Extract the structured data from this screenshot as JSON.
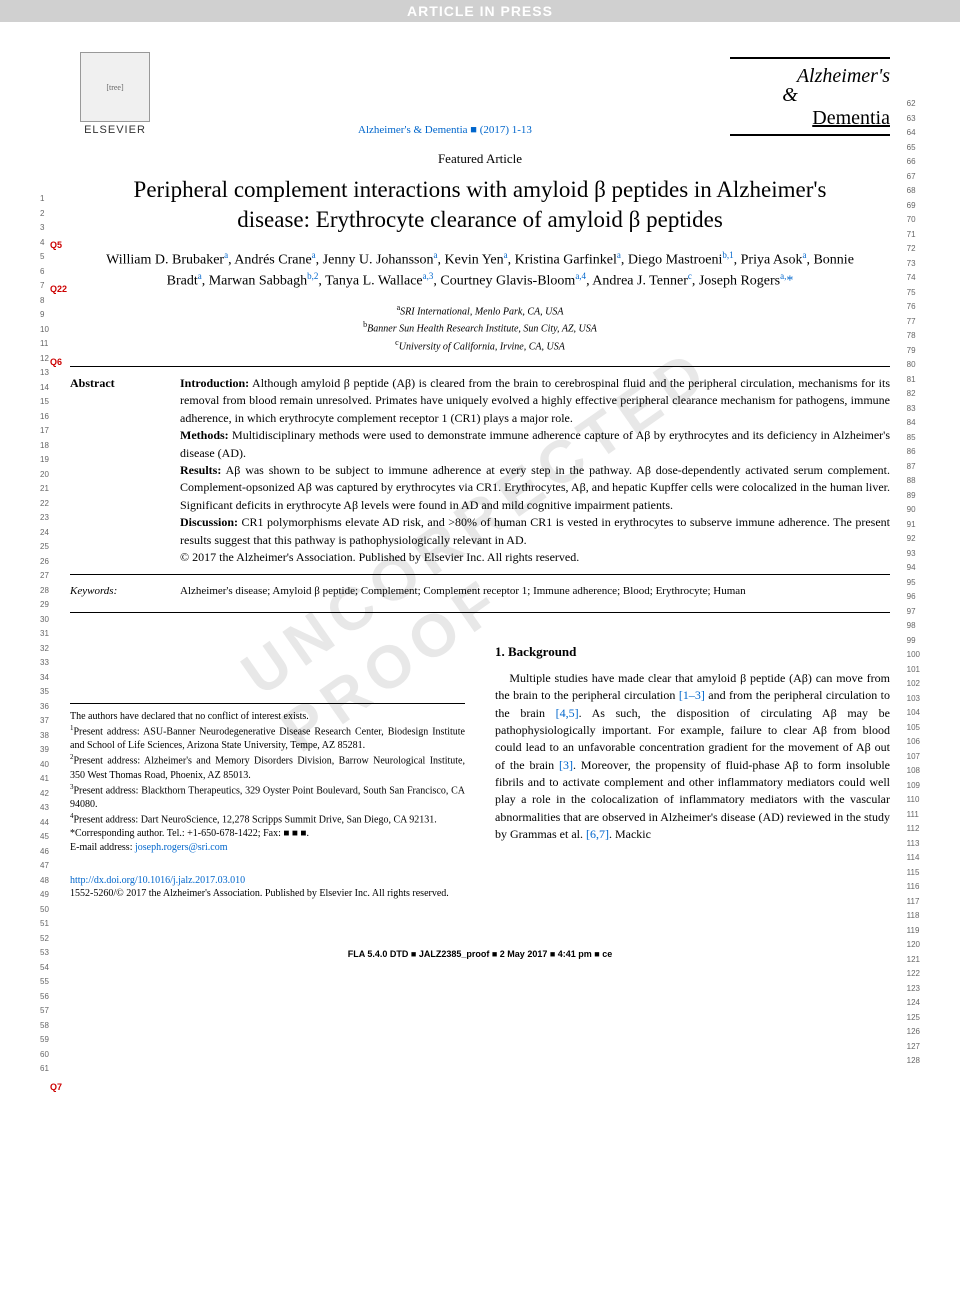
{
  "banner": "ARTICLE IN PRESS",
  "elsevier": "ELSEVIER",
  "citation": "Alzheimer's & Dementia ■ (2017) 1-13",
  "journal_logo": {
    "line1": "Alzheimer's",
    "amp": "&",
    "line2": "Dementia"
  },
  "article_type": "Featured Article",
  "title": "Peripheral complement interactions with amyloid β peptides in Alzheimer's disease: Erythrocyte clearance of amyloid β peptides",
  "authors_html": "William D. Brubaker<sup>a</sup>, Andrés Crane<sup>a</sup>, Jenny U. Johansson<sup>a</sup>, Kevin Yen<sup>a</sup>, Kristina Garfinkel<sup>a</sup>, Diego Mastroeni<sup>b,1</sup>, Priya Asok<sup>a</sup>, Bonnie Bradt<sup>a</sup>, Marwan Sabbagh<sup>b,2</sup>, Tanya L. Wallace<sup>a,3</sup>, Courtney Glavis-Bloom<sup>a,4</sup>, Andrea J. Tenner<sup>c</sup>, Joseph Rogers<sup>a,</sup><span class='corr'>*</span>",
  "affiliations": [
    {
      "sup": "a",
      "text": "SRI International, Menlo Park, CA, USA"
    },
    {
      "sup": "b",
      "text": "Banner Sun Health Research Institute, Sun City, AZ, USA"
    },
    {
      "sup": "c",
      "text": "University of California, Irvine, CA, USA"
    }
  ],
  "abstract": {
    "label": "Abstract",
    "intro_label": "Introduction:",
    "intro": " Although amyloid β peptide (Aβ) is cleared from the brain to cerebrospinal fluid and the peripheral circulation, mechanisms for its removal from blood remain unresolved. Primates have uniquely evolved a highly effective peripheral clearance mechanism for pathogens, immune adherence, in which erythrocyte complement receptor 1 (CR1) plays a major role.",
    "methods_label": "Methods:",
    "methods": " Multidisciplinary methods were used to demonstrate immune adherence capture of Aβ by erythrocytes and its deficiency in Alzheimer's disease (AD).",
    "results_label": "Results:",
    "results": " Aβ was shown to be subject to immune adherence at every step in the pathway. Aβ dose-dependently activated serum complement. Complement-opsonized Aβ was captured by erythrocytes via CR1. Erythrocytes, Aβ, and hepatic Kupffer cells were colocalized in the human liver. Significant deficits in erythrocyte Aβ levels were found in AD and mild cognitive impairment patients.",
    "discussion_label": "Discussion:",
    "discussion": " CR1 polymorphisms elevate AD risk, and >80% of human CR1 is vested in erythrocytes to subserve immune adherence. The present results suggest that this pathway is pathophysiologically relevant in AD.",
    "copyright": "© 2017 the Alzheimer's Association. Published by Elsevier Inc. All rights reserved."
  },
  "keywords": {
    "label": "Keywords:",
    "text": "Alzheimer's disease; Amyloid β peptide; Complement; Complement receptor 1; Immune adherence; Blood; Erythrocyte; Human"
  },
  "section1": {
    "heading": "1. Background",
    "para": "Multiple studies have made clear that amyloid β peptide (Aβ) can move from the brain to the peripheral circulation [1–3] and from the peripheral circulation to the brain [4,5]. As such, the disposition of circulating Aβ may be pathophysiologically important. For example, failure to clear Aβ from blood could lead to an unfavorable concentration gradient for the movement of Aβ out of the brain [3]. Moreover, the propensity of fluid-phase Aβ to form insoluble fibrils and to activate complement and other inflammatory mediators could well play a role in the colocalization of inflammatory mediators with the vascular abnormalities that are observed in Alzheimer's disease (AD) reviewed in the study by Grammas et al. [6,7]. Mackic",
    "refs": {
      "r1": "[1–3]",
      "r2": "[4,5]",
      "r3": "[3]",
      "r4": "[6,7]"
    }
  },
  "footnotes": {
    "conflict": "The authors have declared that no conflict of interest exists.",
    "f1": "Present address: ASU-Banner Neurodegenerative Disease Research Center, Biodesign Institute and School of Life Sciences, Arizona State University, Tempe, AZ 85281.",
    "f2": "Present address: Alzheimer's and Memory Disorders Division, Barrow Neurological Institute, 350 West Thomas Road, Phoenix, AZ 85013.",
    "f3": "Present address: Blackthorn Therapeutics, 329 Oyster Point Boulevard, South San Francisco, CA 94080.",
    "f4": "Present address: Dart NeuroScience, 12,278 Scripps Summit Drive, San Diego, CA 92131.",
    "corr": "*Corresponding author. Tel.: +1-650-678-1422; Fax: ■ ■ ■.",
    "email_label": "E-mail address: ",
    "email": "joseph.rogers@sri.com"
  },
  "doi": "http://dx.doi.org/10.1016/j.jalz.2017.03.010",
  "issn_copyright": "1552-5260/© 2017 the Alzheimer's Association. Published by Elsevier Inc. All rights reserved.",
  "footer": "FLA 5.4.0 DTD ■ JALZ2385_proof ■ 2 May 2017 ■ 4:41 pm ■ ce",
  "queries": {
    "q5": "Q5",
    "q22": "Q22",
    "q6": "Q6",
    "q7": "Q7"
  },
  "line_numbers": {
    "left_start": 1,
    "left_end": 61,
    "right_start": 62,
    "right_end": 128
  },
  "watermark": "UNCORRECTED PROOF",
  "colors": {
    "link": "#0066cc",
    "query": "#cc0000",
    "banner_bg": "#d0d0d0"
  }
}
